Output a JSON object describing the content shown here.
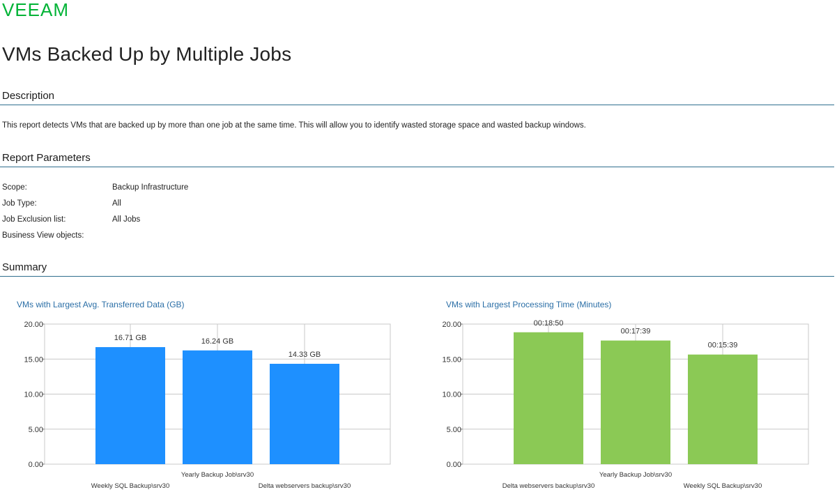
{
  "brand": {
    "logo_text": "VEEAM",
    "logo_color": "#00b336"
  },
  "page": {
    "title": "VMs Backed Up by Multiple Jobs"
  },
  "description": {
    "heading": "Description",
    "text": "This report detects VMs that are backed up by more than one job at the same time. This will allow you to identify wasted storage space and wasted backup windows."
  },
  "parameters": {
    "heading": "Report Parameters",
    "rows": [
      {
        "label": "Scope:",
        "value": "Backup Infrastructure"
      },
      {
        "label": "Job Type:",
        "value": "All"
      },
      {
        "label": "Job Exclusion list:",
        "value": "All Jobs"
      },
      {
        "label": "Business View objects:",
        "value": ""
      }
    ]
  },
  "summary": {
    "heading": "Summary"
  },
  "colors": {
    "section_rule": "#2e6e8e",
    "chart_title": "#2a6ea6",
    "bar_blue": "#1e90ff",
    "bar_green": "#8bc955"
  },
  "chart_data": [
    {
      "type": "bar",
      "title": "VMs with Largest Avg. Transferred Data (GB)",
      "categories": [
        "Weekly SQL Backup\\srv30",
        "Yearly Backup Job\\srv30",
        "Delta webservers backup\\srv30"
      ],
      "values": [
        16.71,
        16.24,
        14.33
      ],
      "data_labels": [
        "16.71 GB",
        "16.24 GB",
        "14.33 GB"
      ],
      "ylim": [
        0,
        20
      ],
      "yticks": [
        "0.00",
        "5.00",
        "10.00",
        "15.00",
        "20.00"
      ],
      "color": "#1e90ff",
      "grid": true
    },
    {
      "type": "bar",
      "title": "VMs with Largest Processing Time (Minutes)",
      "categories": [
        "Delta webservers backup\\srv30",
        "Yearly Backup Job\\srv30",
        "Weekly SQL Backup\\srv30"
      ],
      "values": [
        18.83,
        17.65,
        15.65
      ],
      "data_labels": [
        "00:18:50",
        "00:17:39",
        "00:15:39"
      ],
      "ylim": [
        0,
        20
      ],
      "yticks": [
        "0.00",
        "5.00",
        "10.00",
        "15.00",
        "20.00"
      ],
      "color": "#8bc955",
      "grid": true
    }
  ]
}
